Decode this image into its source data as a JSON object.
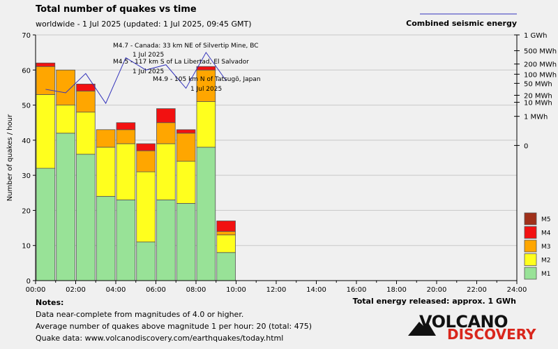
{
  "title": "Total number of quakes vs time",
  "subtitle": "worldwide -  1 Jul 2025 (updated: 1 Jul 2025, 09:45 GMT)",
  "energy_legend": "Combined seismic energy",
  "colors": {
    "M1": "#98e297",
    "M2": "#ffff1e",
    "M3": "#ffa600",
    "M4": "#f21111",
    "M5": "#a0301a",
    "energy_line": "#3333bb",
    "background": "#f0f0f0"
  },
  "chart_data": {
    "type": "bar",
    "stacked": true,
    "title": "Total number of quakes vs time",
    "ylabel": "Number of quakes / hour",
    "ylim": [
      0,
      70
    ],
    "yticks": [
      "0",
      "10",
      "20",
      "30",
      "40",
      "50",
      "60",
      "70"
    ],
    "xticks": [
      "00:00",
      "02:00",
      "04:00",
      "06:00",
      "08:00",
      "10:00",
      "12:00",
      "14:00",
      "16:00",
      "18:00",
      "20:00",
      "22:00",
      "24:00"
    ],
    "xlim_hours": [
      0,
      24
    ],
    "hours": [
      0,
      1,
      2,
      3,
      4,
      5,
      6,
      7,
      8,
      9
    ],
    "series": [
      {
        "name": "M1",
        "values": [
          32,
          42,
          36,
          24,
          23,
          11,
          23,
          22,
          38,
          8
        ]
      },
      {
        "name": "M2",
        "values": [
          21,
          8,
          12,
          14,
          16,
          20,
          16,
          12,
          13,
          5
        ]
      },
      {
        "name": "M3",
        "values": [
          8,
          10,
          6,
          5,
          4,
          6,
          6,
          8,
          9,
          1
        ]
      },
      {
        "name": "M4",
        "values": [
          1,
          0,
          2,
          0,
          2,
          2,
          4,
          1,
          1,
          3
        ]
      },
      {
        "name": "M5",
        "values": [
          0,
          0,
          0,
          0,
          0,
          0,
          0,
          0,
          0,
          0
        ]
      }
    ],
    "energy_axis_ticks": [
      {
        "label": "1 GWh",
        "value": 1000000000
      },
      {
        "label": "500 MWh",
        "value": 500000000
      },
      {
        "label": "200 MWh",
        "value": 200000000
      },
      {
        "label": "100 MWh",
        "value": 100000000
      },
      {
        "label": "50 MWh",
        "value": 50000000
      },
      {
        "label": "20 MWh",
        "value": 20000000
      },
      {
        "label": "10 MWh",
        "value": 10000000
      },
      {
        "label": "1 MWh",
        "value": 1000000
      },
      {
        "label": "0",
        "value": 0
      }
    ],
    "energy_line": {
      "name": "Combined seismic energy",
      "x_hours": [
        0.5,
        1.5,
        2.5,
        3.5,
        4.5,
        5.5,
        6.5,
        7.5,
        8.5,
        9.5
      ],
      "y_left_equiv": [
        54.5,
        53.5,
        59,
        50.5,
        63.5,
        60,
        61.5,
        54.8,
        65,
        57
      ]
    },
    "annotations": [
      {
        "text": "M4.7 - Canada: 33 km NE of Silvertip Mine, BC",
        "date": "1 Jul 2025",
        "hour": 4.5
      },
      {
        "text": "M4.5 - 117 km S of La Libertad, El Salvador",
        "date": "1 Jul 2025",
        "hour": 4.5
      },
      {
        "text": "M4.9 - 105 km N of Tatsugō, Japan",
        "date": "1 Jul 2025",
        "hour": 8.5
      }
    ],
    "legend": [
      "M5",
      "M4",
      "M3",
      "M2",
      "M1"
    ],
    "legend_position": "right"
  },
  "footer": {
    "notes_heading": "Notes:",
    "lines": [
      "Data near-complete from magnitudes of 4.0 or higher.",
      "Average number of quakes above magnitude 1 per hour: 20 (total: 475)",
      "Quake data: www.volcanodiscovery.com/earthquakes/today.html"
    ],
    "total_energy": "Total energy released: approx. 1 GWh"
  },
  "logo": {
    "line1": "VOLCANO",
    "line2": "DISCOVERY"
  }
}
